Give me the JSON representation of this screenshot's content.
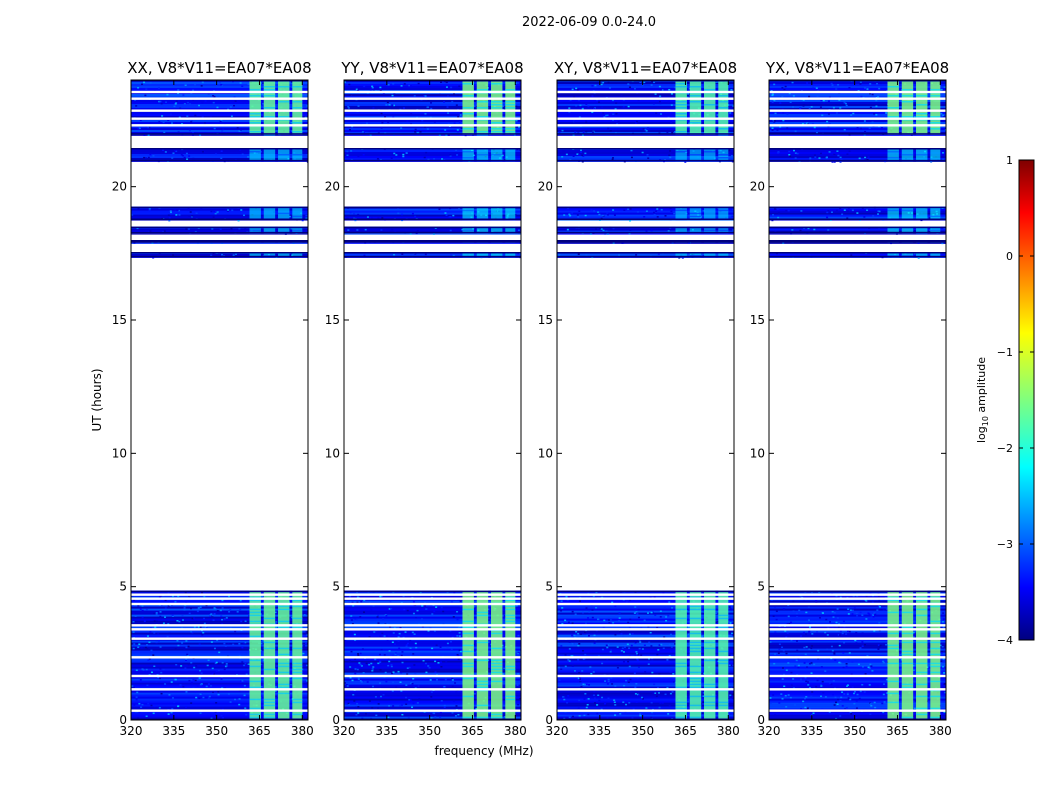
{
  "suptitle": "2022-06-09 0.0-24.0",
  "chart_data": {
    "type": "heatmap",
    "xlabel": "frequency (MHz)",
    "ylabel": "UT (hours)",
    "xlim": [
      320,
      382
    ],
    "ylim": [
      0,
      24
    ],
    "xticks": [
      "320",
      "335",
      "350",
      "365",
      "380"
    ],
    "yticks": [
      "0",
      "5",
      "10",
      "15",
      "20"
    ],
    "panels": [
      {
        "title": "XX, V8*V11=EA07*EA08"
      },
      {
        "title": "YY, V8*V11=EA07*EA08"
      },
      {
        "title": "XY, V8*V11=EA07*EA08"
      },
      {
        "title": "YX, V8*V11=EA07*EA08"
      }
    ],
    "colorbar": {
      "label": "log10 amplitude",
      "range": [
        -4,
        1
      ],
      "ticks": [
        "1",
        "0",
        "−1",
        "−2",
        "−3",
        "−4"
      ],
      "colormap": [
        "#00007f",
        "#0000ff",
        "#007fff",
        "#00ffff",
        "#7fff7f",
        "#ffff00",
        "#ff7f00",
        "#ff0000",
        "#7f0000"
      ]
    },
    "data_bands_hours": [
      [
        0.0,
        4.85
      ],
      [
        17.35,
        17.55
      ],
      [
        17.9,
        18.0
      ],
      [
        18.25,
        18.5
      ],
      [
        18.75,
        19.25
      ],
      [
        20.95,
        21.45
      ],
      [
        21.95,
        24.0
      ]
    ],
    "blank_lines_hours": [
      0.35,
      1.15,
      1.65,
      2.35,
      3.05,
      3.4,
      3.55,
      4.35,
      4.55,
      4.7,
      22.3,
      22.55,
      22.85,
      23.3,
      23.55
    ],
    "bright_channels_mhz": [
      [
        361.5,
        365.5
      ],
      [
        366.5,
        370.5
      ],
      [
        371.5,
        375.5
      ],
      [
        376.5,
        380.0
      ]
    ],
    "bright_channel_level_log10": {
      "XX": -1.6,
      "YY": -1.5,
      "XY": -1.7,
      "YX": -1.5
    },
    "background_level_log10": -3.3
  }
}
